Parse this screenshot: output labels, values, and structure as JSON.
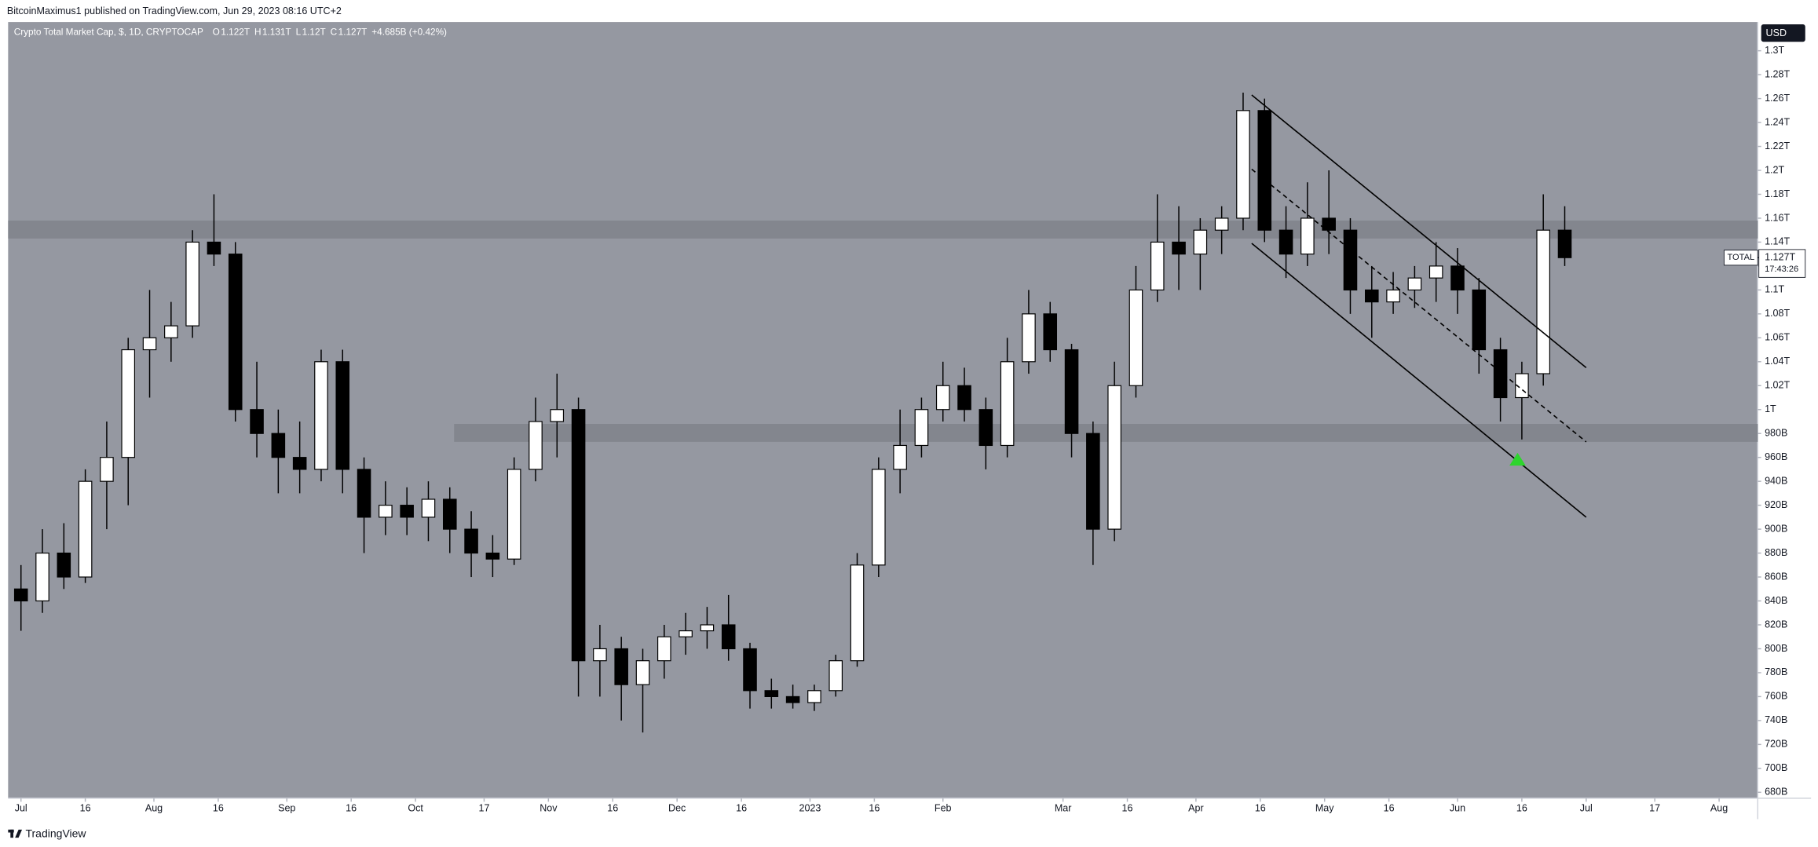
{
  "header": {
    "text": "BitcoinMaximus1 published on TradingView.com, Jun 29, 2023 08:16 UTC+2"
  },
  "footer": {
    "brand": "TradingView"
  },
  "chart_data": {
    "type": "candlestick",
    "title": "Crypto Total Market Cap, $, 1D, CRYPTOCAP",
    "ohlc_legend": [
      {
        "label": "O",
        "value": "1.122T"
      },
      {
        "label": "H",
        "value": "1.131T"
      },
      {
        "label": "L",
        "value": "1.12T"
      },
      {
        "label": "C",
        "value": "1.127T"
      }
    ],
    "change": "+4.685B (+0.42%)",
    "currency": "USD",
    "up_color": "#ffffff",
    "down_color": "#000000",
    "background": "#9598a1",
    "zone_color": "#83868e",
    "x": [
      "2022-07-01",
      "2022-07-06",
      "2022-07-11",
      "2022-07-16",
      "2022-07-21",
      "2022-07-26",
      "2022-07-31",
      "2022-08-05",
      "2022-08-10",
      "2022-08-15",
      "2022-08-20",
      "2022-08-25",
      "2022-08-30",
      "2022-09-04",
      "2022-09-09",
      "2022-09-14",
      "2022-09-19",
      "2022-09-24",
      "2022-09-29",
      "2022-10-04",
      "2022-10-09",
      "2022-10-14",
      "2022-10-19",
      "2022-10-24",
      "2022-10-29",
      "2022-11-03",
      "2022-11-08",
      "2022-11-13",
      "2022-11-18",
      "2022-11-23",
      "2022-11-28",
      "2022-12-03",
      "2022-12-08",
      "2022-12-13",
      "2022-12-18",
      "2022-12-23",
      "2022-12-28",
      "2023-01-02",
      "2023-01-07",
      "2023-01-12",
      "2023-01-17",
      "2023-01-22",
      "2023-01-27",
      "2023-02-01",
      "2023-02-06",
      "2023-02-11",
      "2023-02-16",
      "2023-02-21",
      "2023-02-26",
      "2023-03-03",
      "2023-03-08",
      "2023-03-13",
      "2023-03-18",
      "2023-03-23",
      "2023-03-28",
      "2023-04-02",
      "2023-04-07",
      "2023-04-12",
      "2023-04-17",
      "2023-04-22",
      "2023-04-27",
      "2023-05-02",
      "2023-05-07",
      "2023-05-12",
      "2023-05-17",
      "2023-05-22",
      "2023-05-27",
      "2023-06-01",
      "2023-06-06",
      "2023-06-11",
      "2023-06-16",
      "2023-06-21",
      "2023-06-26"
    ],
    "open": [
      850,
      840,
      880,
      860,
      940,
      960,
      1050,
      1060,
      1070,
      1140,
      1130,
      1000,
      980,
      960,
      950,
      1040,
      950,
      910,
      920,
      910,
      925,
      900,
      880,
      875,
      950,
      990,
      1000,
      790,
      800,
      770,
      790,
      810,
      815,
      820,
      800,
      765,
      760,
      755,
      765,
      790,
      870,
      950,
      970,
      1000,
      1020,
      1000,
      970,
      1040,
      1080,
      1050,
      980,
      900,
      1020,
      1100,
      1140,
      1130,
      1150,
      1160,
      1250,
      1150,
      1130,
      1160,
      1150,
      1100,
      1090,
      1100,
      1110,
      1120,
      1100,
      1050,
      1010,
      1030,
      1150
    ],
    "high": [
      870,
      900,
      905,
      950,
      990,
      1060,
      1100,
      1090,
      1150,
      1180,
      1140,
      1040,
      1000,
      990,
      1050,
      1050,
      960,
      940,
      935,
      940,
      935,
      915,
      895,
      960,
      1010,
      1030,
      1010,
      820,
      810,
      800,
      820,
      830,
      835,
      845,
      805,
      775,
      770,
      770,
      795,
      880,
      960,
      1000,
      1010,
      1040,
      1035,
      1010,
      1060,
      1100,
      1090,
      1055,
      990,
      1040,
      1120,
      1180,
      1170,
      1160,
      1170,
      1265,
      1260,
      1170,
      1190,
      1200,
      1160,
      1120,
      1115,
      1120,
      1140,
      1135,
      1110,
      1060,
      1040,
      1180,
      1170
    ],
    "low": [
      815,
      830,
      850,
      855,
      900,
      920,
      1010,
      1040,
      1060,
      1120,
      990,
      960,
      930,
      930,
      940,
      930,
      880,
      895,
      895,
      890,
      880,
      860,
      860,
      870,
      940,
      960,
      760,
      760,
      740,
      730,
      775,
      795,
      800,
      790,
      750,
      750,
      750,
      748,
      760,
      785,
      860,
      930,
      960,
      990,
      990,
      950,
      960,
      1030,
      1040,
      960,
      870,
      890,
      1010,
      1090,
      1100,
      1100,
      1130,
      1150,
      1140,
      1110,
      1120,
      1130,
      1080,
      1060,
      1080,
      1085,
      1090,
      1080,
      1030,
      990,
      975,
      1020,
      1120
    ],
    "close": [
      840,
      880,
      860,
      940,
      960,
      1050,
      1060,
      1070,
      1140,
      1130,
      1000,
      980,
      960,
      950,
      1040,
      950,
      910,
      920,
      910,
      925,
      900,
      880,
      875,
      950,
      990,
      1000,
      790,
      800,
      770,
      790,
      810,
      815,
      820,
      800,
      765,
      760,
      755,
      765,
      790,
      870,
      950,
      970,
      1000,
      1020,
      1000,
      970,
      1040,
      1080,
      1050,
      980,
      900,
      1020,
      1100,
      1140,
      1130,
      1150,
      1160,
      1250,
      1150,
      1130,
      1160,
      1150,
      1100,
      1090,
      1100,
      1110,
      1120,
      1100,
      1050,
      1010,
      1030,
      1150,
      1127
    ],
    "xlim": [
      "2022-06-28",
      "2023-08-10"
    ],
    "xticks": [
      {
        "value": "2022-07-01",
        "label": "Jul"
      },
      {
        "value": "2022-07-16",
        "label": "16"
      },
      {
        "value": "2022-08-01",
        "label": "Aug"
      },
      {
        "value": "2022-08-16",
        "label": "16"
      },
      {
        "value": "2022-09-01",
        "label": "Sep"
      },
      {
        "value": "2022-09-16",
        "label": "16"
      },
      {
        "value": "2022-10-01",
        "label": "Oct"
      },
      {
        "value": "2022-10-17",
        "label": "17"
      },
      {
        "value": "2022-11-01",
        "label": "Nov"
      },
      {
        "value": "2022-11-16",
        "label": "16"
      },
      {
        "value": "2022-12-01",
        "label": "Dec"
      },
      {
        "value": "2022-12-16",
        "label": "16"
      },
      {
        "value": "2023-01-01",
        "label": "2023"
      },
      {
        "value": "2023-01-16",
        "label": "16"
      },
      {
        "value": "2023-02-01",
        "label": "Feb"
      },
      {
        "value": "2023-03-01",
        "label": "Mar"
      },
      {
        "value": "2023-03-16",
        "label": "16"
      },
      {
        "value": "2023-04-01",
        "label": "Apr"
      },
      {
        "value": "2023-04-16",
        "label": "16"
      },
      {
        "value": "2023-05-01",
        "label": "May"
      },
      {
        "value": "2023-05-16",
        "label": "16"
      },
      {
        "value": "2023-06-01",
        "label": "Jun"
      },
      {
        "value": "2023-06-16",
        "label": "16"
      },
      {
        "value": "2023-07-01",
        "label": "Jul"
      },
      {
        "value": "2023-07-17",
        "label": "17"
      },
      {
        "value": "2023-08-01",
        "label": "Aug"
      }
    ],
    "ylim": [
      675,
      1324
    ],
    "yticks": [
      {
        "value": 680,
        "label": "680B"
      },
      {
        "value": 700,
        "label": "700B"
      },
      {
        "value": 720,
        "label": "720B"
      },
      {
        "value": 740,
        "label": "740B"
      },
      {
        "value": 760,
        "label": "760B"
      },
      {
        "value": 780,
        "label": "780B"
      },
      {
        "value": 800,
        "label": "800B"
      },
      {
        "value": 820,
        "label": "820B"
      },
      {
        "value": 840,
        "label": "840B"
      },
      {
        "value": 860,
        "label": "860B"
      },
      {
        "value": 880,
        "label": "880B"
      },
      {
        "value": 900,
        "label": "900B"
      },
      {
        "value": 920,
        "label": "920B"
      },
      {
        "value": 940,
        "label": "940B"
      },
      {
        "value": 960,
        "label": "960B"
      },
      {
        "value": 980,
        "label": "980B"
      },
      {
        "value": 1000,
        "label": "1T"
      },
      {
        "value": 1020,
        "label": "1.02T"
      },
      {
        "value": 1040,
        "label": "1.04T"
      },
      {
        "value": 1060,
        "label": "1.06T"
      },
      {
        "value": 1080,
        "label": "1.08T"
      },
      {
        "value": 1100,
        "label": "1.1T"
      },
      {
        "value": 1120,
        "label": "1.12T"
      },
      {
        "value": 1140,
        "label": "1.14T"
      },
      {
        "value": 1160,
        "label": "1.16T"
      },
      {
        "value": 1180,
        "label": "1.18T"
      },
      {
        "value": 1200,
        "label": "1.2T"
      },
      {
        "value": 1220,
        "label": "1.22T"
      },
      {
        "value": 1240,
        "label": "1.24T"
      },
      {
        "value": 1260,
        "label": "1.26T"
      },
      {
        "value": 1280,
        "label": "1.28T"
      },
      {
        "value": 1300,
        "label": "1.3T"
      }
    ],
    "grid": false,
    "zones": [
      {
        "start": "2022-06-28",
        "from": 1143,
        "to": 1158
      },
      {
        "start": "2022-10-10",
        "from": 973,
        "to": 988
      }
    ],
    "trendlines": [
      {
        "x": [
          "2023-04-14",
          "2023-07-01"
        ],
        "y": [
          1263,
          1035
        ],
        "dashed": false
      },
      {
        "x": [
          "2023-04-14",
          "2023-07-01"
        ],
        "y": [
          1201,
          973
        ],
        "dashed": true
      },
      {
        "x": [
          "2023-04-14",
          "2023-07-01"
        ],
        "y": [
          1139,
          910
        ],
        "dashed": false
      }
    ],
    "marker": {
      "x": "2023-06-15",
      "y": 958,
      "color": "#2ed52e"
    },
    "last_price": {
      "value": 1127,
      "label": "1.127T",
      "symbol": "TOTAL",
      "countdown": "17:43:26"
    }
  }
}
